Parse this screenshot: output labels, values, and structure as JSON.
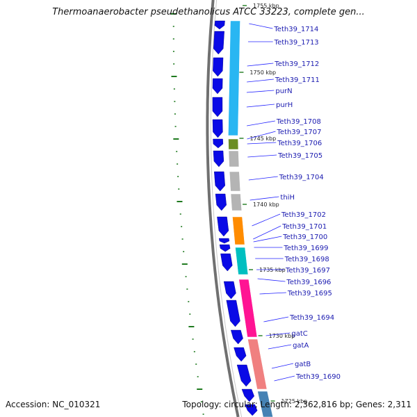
{
  "header": {
    "title": "Thermoanaerobacter pseudethanolicus ATCC 33223, complete gen..."
  },
  "footer": {
    "accession": "Accession: NC_010321",
    "summary": "Topology: circular; Length: 2,362,816 bp; Genes: 2,311"
  },
  "colors": {
    "forward_gene": "#0a0ae6",
    "backbone": "#707070",
    "label": "#1a1ab0",
    "leader_line": "#2020ff",
    "tick": "#1f7a1f",
    "cog_cyan": "#29b6f2",
    "cog_olive": "#6b8e23",
    "cog_gray": "#b4b4b4",
    "cog_orange": "#ff8c00",
    "cog_teal": "#00bfc0",
    "cog_pink": "#ff1493",
    "cog_salmon": "#f08080",
    "cog_steel": "#4682b4"
  },
  "kbp_markers": [
    "1755 kbp",
    "1750 kbp",
    "1745 kbp",
    "1740 kbp",
    "1735 kbp",
    "1730 kbp",
    "1725 kbp"
  ],
  "gene_labels": [
    "Teth39_1714",
    "Teth39_1713",
    "Teth39_1712",
    "Teth39_1711",
    "purN",
    "purH",
    "Teth39_1708",
    "Teth39_1707",
    "Teth39_1706",
    "Teth39_1705",
    "Teth39_1704",
    "thiH",
    "Teth39_1702",
    "Teth39_1701",
    "Teth39_1700",
    "Teth39_1699",
    "Teth39_1698",
    "Teth39_1697",
    "Teth39_1696",
    "Teth39_1695",
    "Teth39_1694",
    "gatC",
    "gatA",
    "gatB",
    "Teth39_1690"
  ],
  "cog_segments": [
    {
      "color": "cog_cyan"
    },
    {
      "color": "cog_olive"
    },
    {
      "color": "cog_gray"
    },
    {
      "color": "cog_gray"
    },
    {
      "color": "cog_gray"
    },
    {
      "color": "cog_orange"
    },
    {
      "color": "cog_teal"
    },
    {
      "color": "cog_pink"
    },
    {
      "color": "cog_salmon"
    },
    {
      "color": "cog_steel"
    }
  ]
}
